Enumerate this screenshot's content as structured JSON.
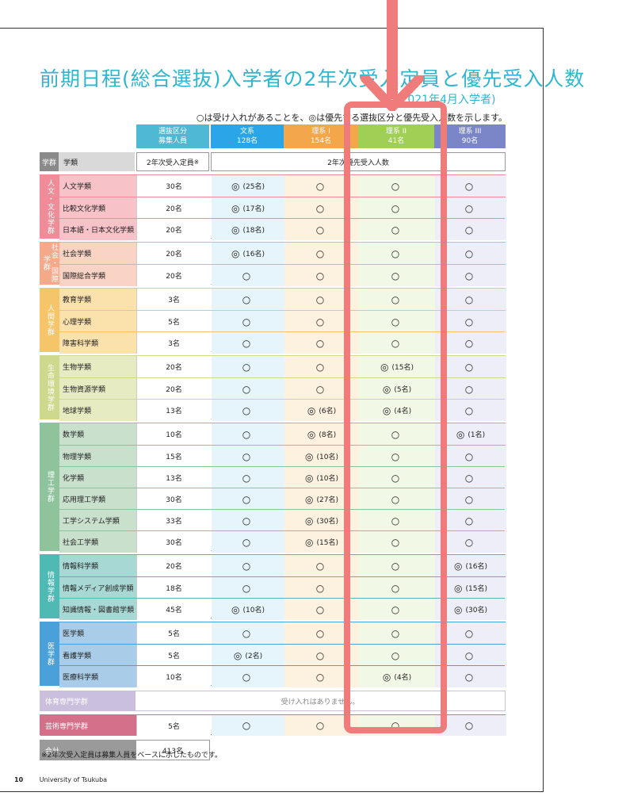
{
  "title": "前期日程(総合選抜)入学者の2年次受入定員と優先受入人数",
  "subtitle": "(2021年4月入学者)",
  "legend": "○は受け入れがあることを、◎は優先する選抜区分と優先受入人数を示します。",
  "header": {
    "category_title": "選抜区分",
    "category_sub": "募集人員",
    "columns": [
      {
        "name": "文系",
        "count": "128名",
        "color": "#2aa6e8"
      },
      {
        "name": "理系 I",
        "count": "154名",
        "color": "#f3a64a"
      },
      {
        "name": "理系 II",
        "count": "41名",
        "color": "#9fcf55"
      },
      {
        "name": "理系 III",
        "count": "90名",
        "color": "#7a86c8"
      }
    ],
    "gakugun": "学群",
    "gakurui": "学類",
    "capacity_label": "2年次受入定員",
    "capacity_mark": "※",
    "priority_label": "2年次優先受入人数"
  },
  "groups": [
    {
      "label": "人文・文化学群",
      "color": "#ef8c97",
      "bg": "#f7c3c8",
      "rows": [
        {
          "name": "人文学類",
          "cap": "30名",
          "cells": [
            "◎ (25名)",
            "○",
            "○",
            "○"
          ]
        },
        {
          "name": "比較文化学類",
          "cap": "20名",
          "cells": [
            "◎ (17名)",
            "○",
            "○",
            "○"
          ]
        },
        {
          "name": "日本語・日本文化学類",
          "cap": "20名",
          "cells": [
            "◎ (18名)",
            "○",
            "○",
            "○"
          ]
        }
      ]
    },
    {
      "label": "社会・国際学群",
      "color": "#f4a98a",
      "bg": "#f9d3c3",
      "rows": [
        {
          "name": "社会学類",
          "cap": "20名",
          "cells": [
            "◎ (16名)",
            "○",
            "○",
            "○"
          ]
        },
        {
          "name": "国際総合学類",
          "cap": "20名",
          "cells": [
            "○",
            "○",
            "○",
            "○"
          ]
        }
      ]
    },
    {
      "label": "人間学群",
      "color": "#f6c56a",
      "bg": "#fbe1ac",
      "rows": [
        {
          "name": "教育学類",
          "cap": "3名",
          "cells": [
            "○",
            "○",
            "○",
            "○"
          ]
        },
        {
          "name": "心理学類",
          "cap": "5名",
          "cells": [
            "○",
            "○",
            "○",
            "○"
          ]
        },
        {
          "name": "障害科学類",
          "cap": "3名",
          "cells": [
            "○",
            "○",
            "○",
            "○"
          ]
        }
      ]
    },
    {
      "label": "生命環境学群",
      "color": "#cfd98e",
      "bg": "#e6ebc2",
      "rows": [
        {
          "name": "生物学類",
          "cap": "20名",
          "cells": [
            "○",
            "○",
            "◎ (15名)",
            "○"
          ]
        },
        {
          "name": "生物資源学類",
          "cap": "20名",
          "cells": [
            "○",
            "○",
            "◎ (5名)",
            "○"
          ]
        },
        {
          "name": "地球学類",
          "cap": "13名",
          "cells": [
            "○",
            "◎ (6名)",
            "◎ (4名)",
            "○"
          ]
        }
      ]
    },
    {
      "label": "理工学群",
      "color": "#8fc39c",
      "bg": "#c8e0cc",
      "rows": [
        {
          "name": "数学類",
          "cap": "10名",
          "cells": [
            "○",
            "◎ (8名)",
            "○",
            "◎ (1名)"
          ]
        },
        {
          "name": "物理学類",
          "cap": "15名",
          "cells": [
            "○",
            "◎ (10名)",
            "○",
            "○"
          ]
        },
        {
          "name": "化学類",
          "cap": "13名",
          "cells": [
            "○",
            "◎ (10名)",
            "○",
            "○"
          ]
        },
        {
          "name": "応用理工学類",
          "cap": "30名",
          "cells": [
            "○",
            "◎ (27名)",
            "○",
            "○"
          ]
        },
        {
          "name": "工学システム学類",
          "cap": "33名",
          "cells": [
            "○",
            "◎ (30名)",
            "○",
            "○"
          ]
        },
        {
          "name": "社会工学類",
          "cap": "30名",
          "cells": [
            "○",
            "◎ (15名)",
            "○",
            "○"
          ]
        }
      ]
    },
    {
      "label": "情報学群",
      "color": "#4fb9b3",
      "bg": "#a8d8d4",
      "rows": [
        {
          "name": "情報科学類",
          "cap": "20名",
          "cells": [
            "○",
            "○",
            "○",
            "◎ (16名)"
          ]
        },
        {
          "name": "情報メディア創成学類",
          "cap": "18名",
          "cells": [
            "○",
            "○",
            "○",
            "◎ (15名)"
          ]
        },
        {
          "name": "知識情報・図書館学類",
          "cap": "45名",
          "cells": [
            "◎ (10名)",
            "○",
            "○",
            "◎ (30名)"
          ]
        }
      ]
    },
    {
      "label": "医学群",
      "color": "#4aa0d8",
      "bg": "#a9cde9",
      "rows": [
        {
          "name": "医学類",
          "cap": "5名",
          "cells": [
            "○",
            "○",
            "○",
            "○"
          ]
        },
        {
          "name": "看護学類",
          "cap": "5名",
          "cells": [
            "◎ (2名)",
            "○",
            "○",
            "○"
          ]
        },
        {
          "name": "医療科学類",
          "cap": "10名",
          "cells": [
            "○",
            "○",
            "◎ (4名)",
            "○"
          ]
        }
      ]
    }
  ],
  "taiiku": {
    "name": "体育専門学群",
    "text": "受け入れはありません。",
    "color": "#cbbfde"
  },
  "geijutsu": {
    "name": "芸術専門学群",
    "cap": "5名",
    "cells": [
      "○",
      "○",
      "○",
      "○"
    ],
    "color": "#d4708a"
  },
  "total": {
    "label": "合計",
    "value": "413名",
    "color": "#9a9a9a"
  },
  "note": "※2年次受入定員は募集人員をベースに示したものです。",
  "footer": {
    "page": "10",
    "org": "University of Tsukuba"
  }
}
